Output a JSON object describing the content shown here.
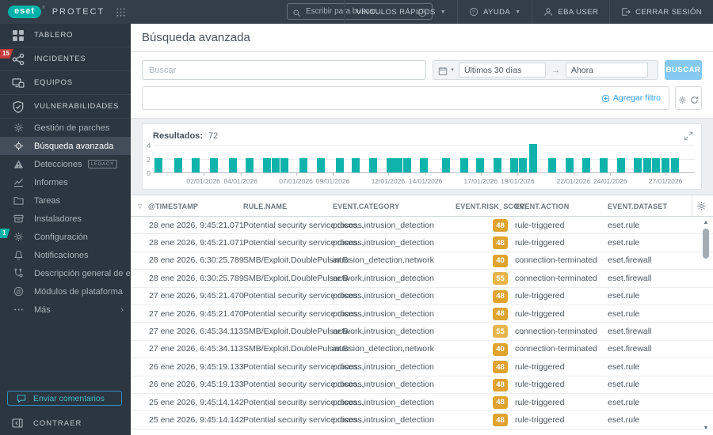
{
  "topbar": {
    "logo_text": "eset",
    "logo_registered": "®",
    "product_name": "PROTECT",
    "search_placeholder": "Escribir para buscar...",
    "quick_links_label": "VÍNCULOS RÁPIDOS",
    "help_label": "AYUDA",
    "user_label": "EBA USER",
    "logout_label": "CERRAR SESIÓN"
  },
  "sidebar": {
    "main_items": [
      {
        "label": "TABLERO",
        "icon": "dashboard-icon"
      },
      {
        "label": "INCIDENTES",
        "icon": "incidents-icon",
        "badge": "15",
        "badge_color": "#C43D3D"
      },
      {
        "label": "EQUIPOS",
        "icon": "computers-icon"
      },
      {
        "label": "VULNERABILIDADES",
        "icon": "vulnerabilities-icon"
      }
    ],
    "sub_items": [
      {
        "label": "Gestión de parches",
        "icon": "patch-icon"
      },
      {
        "label": "Búsqueda avanzada",
        "icon": "search-target-icon",
        "active": true
      },
      {
        "label": "Detecciones",
        "icon": "detections-icon",
        "tag": "LEGACY"
      },
      {
        "label": "Informes",
        "icon": "reports-icon"
      },
      {
        "label": "Tareas",
        "icon": "tasks-icon"
      },
      {
        "label": "Instaladores",
        "icon": "installers-icon"
      },
      {
        "label": "Configuración",
        "icon": "config-gear-icon",
        "badge": "1",
        "badge_color": "#00AFA5"
      },
      {
        "label": "Notificaciones",
        "icon": "notifications-icon"
      },
      {
        "label": "Descripción general de esta...",
        "icon": "status-overview-icon"
      },
      {
        "label": "Módulos de plataforma",
        "icon": "platform-modules-icon"
      },
      {
        "label": "Más",
        "icon": "more-icon",
        "chevron": "›"
      }
    ],
    "feedback_label": "Enviar comentarios",
    "collapse_label": "CONTRAER"
  },
  "page": {
    "title": "Búsqueda avanzada"
  },
  "filters": {
    "search_placeholder": "Buscar",
    "date_from": "Últimos 30 días",
    "date_to": "Ahora",
    "arrow": "→",
    "search_button_label": "BUSCAR",
    "add_filter_label": "Agregar filtro"
  },
  "results": {
    "label": "Resultados:",
    "count": "72"
  },
  "chart_data": {
    "type": "bar",
    "title": "Resultados",
    "total_results": 72,
    "bar_color": "#10B3AC",
    "ylim": [
      0,
      4
    ],
    "yticks": [
      "0",
      "2",
      "4"
    ],
    "grid": "horizontal",
    "bars": [
      {
        "date": "31/12/2025",
        "value": 2,
        "x_pct": 0.3
      },
      {
        "date": "01/01/2026",
        "value": 2,
        "x_pct": 3.9
      },
      {
        "date": "01/01/2026",
        "value": 2,
        "x_pct": 7.1
      },
      {
        "date": "02/01/2026",
        "value": 2,
        "x_pct": 10.5
      },
      {
        "date": "03/01/2026",
        "value": 2,
        "x_pct": 14.0
      },
      {
        "date": "04/01/2026",
        "value": 2,
        "x_pct": 17.1
      },
      {
        "date": "05/01/2026",
        "value": 2,
        "x_pct": 20.3
      },
      {
        "date": "05/01/2026",
        "value": 2,
        "x_pct": 21.9
      },
      {
        "date": "06/01/2026",
        "value": 2,
        "x_pct": 23.5
      },
      {
        "date": "07/01/2026",
        "value": 2,
        "x_pct": 27.1
      },
      {
        "date": "08/01/2026",
        "value": 2,
        "x_pct": 30.2
      },
      {
        "date": "09/01/2026",
        "value": 2,
        "x_pct": 33.8
      },
      {
        "date": "10/01/2026",
        "value": 2,
        "x_pct": 36.7
      },
      {
        "date": "11/01/2026",
        "value": 2,
        "x_pct": 39.9
      },
      {
        "date": "12/01/2026",
        "value": 2,
        "x_pct": 43.1
      },
      {
        "date": "12/01/2026",
        "value": 2,
        "x_pct": 44.6
      },
      {
        "date": "13/01/2026",
        "value": 2,
        "x_pct": 46.2
      },
      {
        "date": "14/01/2026",
        "value": 2,
        "x_pct": 49.3
      },
      {
        "date": "15/01/2026",
        "value": 2,
        "x_pct": 53.4
      },
      {
        "date": "16/01/2026",
        "value": 2,
        "x_pct": 56.7
      },
      {
        "date": "17/01/2026",
        "value": 2,
        "x_pct": 59.6
      },
      {
        "date": "18/01/2026",
        "value": 2,
        "x_pct": 62.8
      },
      {
        "date": "19/01/2026",
        "value": 2,
        "x_pct": 65.9
      },
      {
        "date": "19/01/2026",
        "value": 2,
        "x_pct": 67.6
      },
      {
        "date": "20/01/2026",
        "value": 4,
        "x_pct": 69.4
      },
      {
        "date": "21/01/2026",
        "value": 2,
        "x_pct": 73.0
      },
      {
        "date": "22/01/2026",
        "value": 2,
        "x_pct": 76.1
      },
      {
        "date": "23/01/2026",
        "value": 2,
        "x_pct": 79.3
      },
      {
        "date": "24/01/2026",
        "value": 2,
        "x_pct": 82.5
      },
      {
        "date": "25/01/2026",
        "value": 2,
        "x_pct": 85.6
      },
      {
        "date": "26/01/2026",
        "value": 2,
        "x_pct": 88.8
      },
      {
        "date": "26/01/2026",
        "value": 2,
        "x_pct": 90.5
      },
      {
        "date": "27/01/2026",
        "value": 2,
        "x_pct": 92.1
      },
      {
        "date": "27/01/2026",
        "value": 2,
        "x_pct": 93.9
      },
      {
        "date": "28/01/2026",
        "value": 2,
        "x_pct": 95.6
      }
    ],
    "xticks": [
      {
        "label": "02/01/2026",
        "x_pct": 9.3
      },
      {
        "label": "04/01/2026",
        "x_pct": 16.2
      },
      {
        "label": "07/01/2026",
        "x_pct": 26.4
      },
      {
        "label": "09/01/2026",
        "x_pct": 33.2
      },
      {
        "label": "12/01/2026",
        "x_pct": 43.4
      },
      {
        "label": "14/01/2026",
        "x_pct": 50.3
      },
      {
        "label": "17/01/2026",
        "x_pct": 60.5
      },
      {
        "label": "19/01/2026",
        "x_pct": 67.3
      },
      {
        "label": "22/01/2026",
        "x_pct": 77.6
      },
      {
        "label": "24/01/2026",
        "x_pct": 84.4
      },
      {
        "label": "27/01/2026",
        "x_pct": 94.6
      }
    ]
  },
  "table": {
    "sort_icon": "▽",
    "columns": [
      "@TIMESTAMP",
      "RULE.NAME",
      "EVENT.CATEGORY",
      "EVENT.RISK_SCORE",
      "EVENT.ACTION",
      "EVENT.DATASET"
    ],
    "rows": [
      {
        "timestamp": "28 ene 2026, 9:45:21.071",
        "rule_name": "Potential security service disco...",
        "category": "process,intrusion_detection",
        "risk_score": "48",
        "risk_color": "#DFA32E",
        "action": "rule-triggered",
        "dataset": "eset.rule"
      },
      {
        "timestamp": "28 ene 2026, 9:45:21.071",
        "rule_name": "Potential security service disco...",
        "category": "process,intrusion_detection",
        "risk_score": "48",
        "risk_color": "#DFA32E",
        "action": "rule-triggered",
        "dataset": "eset.rule"
      },
      {
        "timestamp": "28 ene 2026, 6:30:25.789",
        "rule_name": "SMB/Exploit.DoublePulsar.B",
        "category": "intrusion_detection,network",
        "risk_score": "40",
        "risk_color": "#DFA32E",
        "action": "connection-terminated",
        "dataset": "eset.firewall"
      },
      {
        "timestamp": "28 ene 2026, 6:30:25.789",
        "rule_name": "SMB/Exploit.DoublePulsar.B",
        "category": "network,intrusion_detection",
        "risk_score": "55",
        "risk_color": "#E7B54A",
        "action": "connection-terminated",
        "dataset": "eset.firewall"
      },
      {
        "timestamp": "27 ene 2026, 9:45:21.470",
        "rule_name": "Potential security service disco...",
        "category": "process,intrusion_detection",
        "risk_score": "48",
        "risk_color": "#DFA32E",
        "action": "rule-triggered",
        "dataset": "eset.rule"
      },
      {
        "timestamp": "27 ene 2026, 9:45:21.470",
        "rule_name": "Potential security service disco...",
        "category": "process,intrusion_detection",
        "risk_score": "48",
        "risk_color": "#DFA32E",
        "action": "rule-triggered",
        "dataset": "eset.rule"
      },
      {
        "timestamp": "27 ene 2026, 6:45:34.113",
        "rule_name": "SMB/Exploit.DoublePulsar.B",
        "category": "network,intrusion_detection",
        "risk_score": "55",
        "risk_color": "#E7B54A",
        "action": "connection-terminated",
        "dataset": "eset.firewall"
      },
      {
        "timestamp": "27 ene 2026, 6:45:34.113",
        "rule_name": "SMB/Exploit.DoublePulsar.B",
        "category": "intrusion_detection,network",
        "risk_score": "40",
        "risk_color": "#DFA32E",
        "action": "connection-terminated",
        "dataset": "eset.firewall"
      },
      {
        "timestamp": "26 ene 2026, 9:45:19.133",
        "rule_name": "Potential security service disco...",
        "category": "process,intrusion_detection",
        "risk_score": "48",
        "risk_color": "#DFA32E",
        "action": "rule-triggered",
        "dataset": "eset.rule"
      },
      {
        "timestamp": "26 ene 2026, 9:45:19.133",
        "rule_name": "Potential security service disco...",
        "category": "process,intrusion_detection",
        "risk_score": "48",
        "risk_color": "#DFA32E",
        "action": "rule-triggered",
        "dataset": "eset.rule"
      },
      {
        "timestamp": "25 ene 2026, 9:45:14.142",
        "rule_name": "Potential security service disco...",
        "category": "process,intrusion_detection",
        "risk_score": "48",
        "risk_color": "#DFA32E",
        "action": "rule-triggered",
        "dataset": "eset.rule"
      },
      {
        "timestamp": "25 ene 2026, 9:45:14.142",
        "rule_name": "Potential security service disco...",
        "category": "process,intrusion_detection",
        "risk_score": "48",
        "risk_color": "#DFA32E",
        "action": "rule-triggered",
        "dataset": "eset.rule"
      }
    ]
  },
  "colors": {
    "accent_teal": "#00B2A9",
    "chart_bar": "#10B3AC",
    "risk_badge_amber": "#DFA32E",
    "button_blue": "#85C9F1",
    "link_blue": "#2E9BE2",
    "incident_badge_red": "#C43D3D",
    "topbar_bg": "#333E49",
    "sidebar_bg": "#2C3640"
  }
}
